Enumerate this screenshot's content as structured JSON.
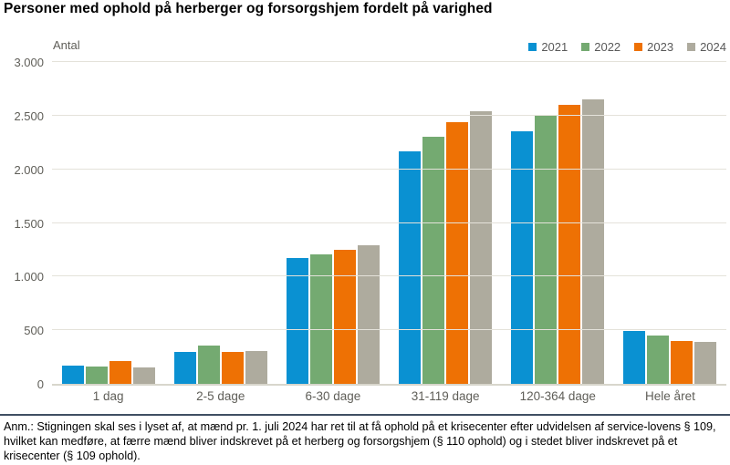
{
  "title": "Personer med ophold på herberger og forsorgshjem fordelt på varighed",
  "footnote": "Anm.: Stigningen skal ses i lyset af, at mænd pr. 1. juli 2024 har ret til at få ophold på et krisecenter efter udvidelsen af service-lovens § 109, hvilket kan medføre, at færre mænd bliver indskrevet på et herberg og forsorgshjem (§ 110 ophold) og i stedet bliver indskrevet på et krisecenter (§ 109 ophold).",
  "colors": {
    "grid": "#e4e2da",
    "axis_line": "#d8d6cc",
    "separator": "#404f63",
    "tick_text": "#5f5e58",
    "legend_text": "#595959"
  },
  "chart_data": {
    "type": "bar",
    "title": "Personer med ophold på herberger og forsorgshjem fordelt på varighed",
    "ylabel": "Antal",
    "xlabel": "",
    "ylim": [
      0,
      3000
    ],
    "ytick_values": [
      0,
      500,
      1000,
      1500,
      2000,
      2500,
      3000
    ],
    "ytick_labels": [
      "0",
      "500",
      "1.000",
      "1.500",
      "2.000",
      "2.500",
      "3.000"
    ],
    "grid": true,
    "legend_position": "top-right",
    "categories": [
      "1 dag",
      "2-5 dage",
      "6-30 dage",
      "31-119 dage",
      "120-364 dage",
      "Hele året"
    ],
    "series": [
      {
        "name": "2021",
        "color": "#0a91d2",
        "values": [
          170,
          300,
          1175,
          2170,
          2350,
          495
        ]
      },
      {
        "name": "2022",
        "color": "#74aa71",
        "values": [
          160,
          360,
          1205,
          2305,
          2500,
          450
        ]
      },
      {
        "name": "2023",
        "color": "#ee7104",
        "values": [
          215,
          300,
          1250,
          2440,
          2600,
          400
        ]
      },
      {
        "name": "2024",
        "color": "#aeab9e",
        "values": [
          150,
          310,
          1290,
          2545,
          2650,
          395
        ]
      }
    ]
  }
}
